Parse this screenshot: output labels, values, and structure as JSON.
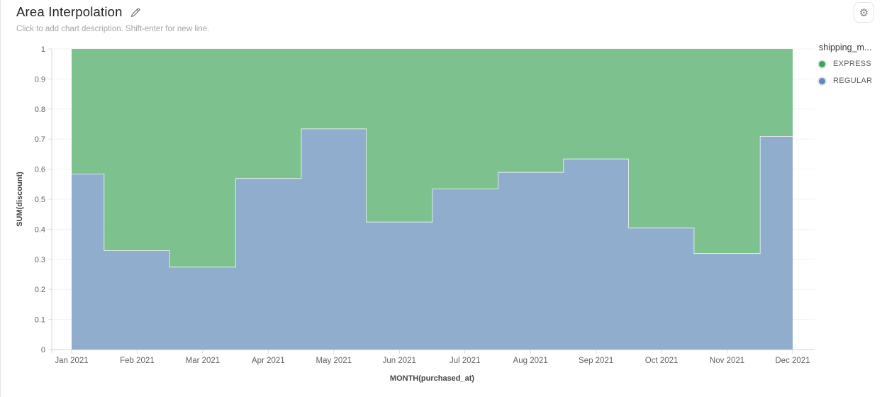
{
  "header": {
    "title": "Area Interpolation",
    "subtitle": "Click to add chart description. Shift-enter for new line.",
    "edit_icon": "pencil-icon",
    "settings_icon": "gear-icon",
    "settings_glyph": "⚙"
  },
  "legend": {
    "title": "shipping_m...",
    "items": [
      {
        "label": "EXPRESS",
        "color": "#3aa55c"
      },
      {
        "label": "REGULAR",
        "color": "#5f87c0"
      }
    ]
  },
  "chart_data": {
    "type": "area",
    "interpolation": "step",
    "stacked": true,
    "normalized": true,
    "title": "Area Interpolation",
    "xlabel": "MONTH(purchased_at)",
    "ylabel": "SUM(discount)",
    "ylim": [
      0,
      1
    ],
    "y_ticks": [
      0,
      0.1,
      0.2,
      0.3,
      0.4,
      0.5,
      0.6,
      0.7,
      0.8,
      0.9,
      1
    ],
    "y_tick_labels": [
      "0",
      "0.1",
      "0.2",
      "0.3",
      "0.4",
      "0.5",
      "0.6",
      "0.7",
      "0.8",
      "0.9",
      "1"
    ],
    "categories": [
      "Jan 2021",
      "Feb 2021",
      "Mar 2021",
      "Apr 2021",
      "May 2021",
      "Jun 2021",
      "Jul 2021",
      "Aug 2021",
      "Sep 2021",
      "Oct 2021",
      "Nov 2021",
      "Dec 2021"
    ],
    "series": [
      {
        "name": "EXPRESS",
        "fill": "#7dc28e",
        "values": [
          0.415,
          0.67,
          0.725,
          0.43,
          0.265,
          0.575,
          0.465,
          0.41,
          0.365,
          0.595,
          0.68,
          0.29
        ]
      },
      {
        "name": "REGULAR",
        "fill": "#91adcd",
        "values": [
          0.585,
          0.33,
          0.275,
          0.57,
          0.735,
          0.425,
          0.535,
          0.59,
          0.635,
          0.405,
          0.32,
          0.71
        ]
      }
    ],
    "grid": true,
    "legend_position": "right"
  },
  "colors": {
    "grid": "#f2f2f2",
    "axis": "#d9d9d9",
    "tick_label": "#636363",
    "axis_title": "#454545",
    "boundary_stroke": "rgba(252,252,252,0.9)"
  }
}
